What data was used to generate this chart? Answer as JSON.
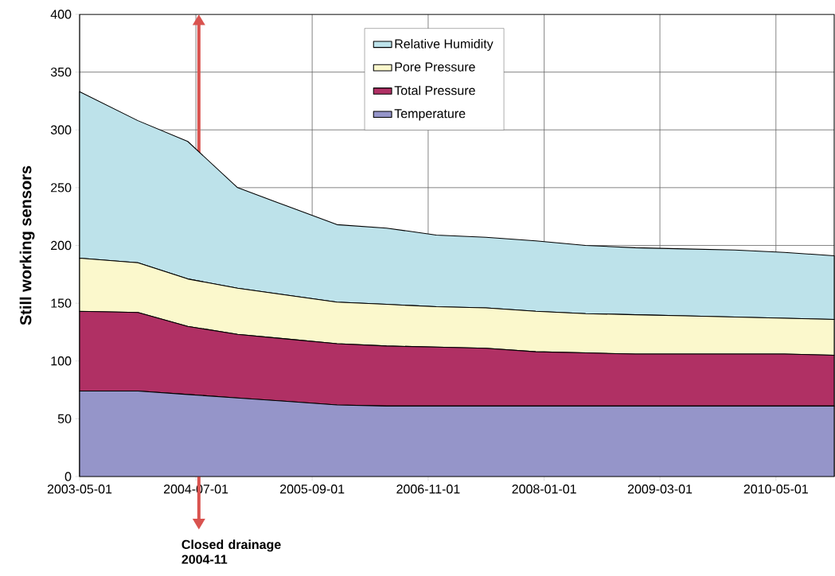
{
  "chart_data": {
    "type": "area",
    "stacked": true,
    "ylabel": "Still working sensors",
    "x": [
      "2003-05",
      "2003-12",
      "2004-06",
      "2004-12",
      "2005-06",
      "2005-12",
      "2006-06",
      "2006-12",
      "2007-06",
      "2007-12",
      "2008-06",
      "2008-12",
      "2009-06",
      "2009-12",
      "2010-06",
      "2010-12"
    ],
    "series": [
      {
        "name": "Temperature",
        "color": "#9595c9",
        "values": [
          74,
          74,
          71,
          68,
          65,
          62,
          61,
          61,
          61,
          61,
          61,
          61,
          61,
          61,
          61,
          61
        ]
      },
      {
        "name": "Total Pressure",
        "color": "#b03064",
        "values": [
          69,
          68,
          59,
          55,
          54,
          53,
          52,
          51,
          50,
          47,
          46,
          45,
          45,
          45,
          45,
          44
        ]
      },
      {
        "name": "Pore Pressure",
        "color": "#fbf8cc",
        "values": [
          46,
          43,
          41,
          40,
          38,
          36,
          36,
          35,
          35,
          35,
          34,
          34,
          33,
          32,
          31,
          31
        ]
      },
      {
        "name": "Relative Humidity",
        "color": "#bde2ea",
        "values": [
          144,
          123,
          119,
          87,
          77,
          67,
          66,
          62,
          61,
          61,
          59,
          58,
          58,
          58,
          57,
          55
        ]
      }
    ],
    "xlim": [
      "2003-05-01",
      "2010-12-01"
    ],
    "xticks": [
      "2003-05-01",
      "2004-07-01",
      "2005-09-01",
      "2006-11-01",
      "2008-01-01",
      "2009-03-01",
      "2010-05-01"
    ],
    "ylim": [
      0,
      400
    ],
    "yticks": [
      0,
      50,
      100,
      150,
      200,
      250,
      300,
      350,
      400
    ],
    "grid": true,
    "legend": "top",
    "ref_lines": [
      {
        "axis": "x",
        "value": "2004-07-12",
        "label": "Closed drainage 2004-11",
        "color": "#d9534f"
      }
    ]
  }
}
